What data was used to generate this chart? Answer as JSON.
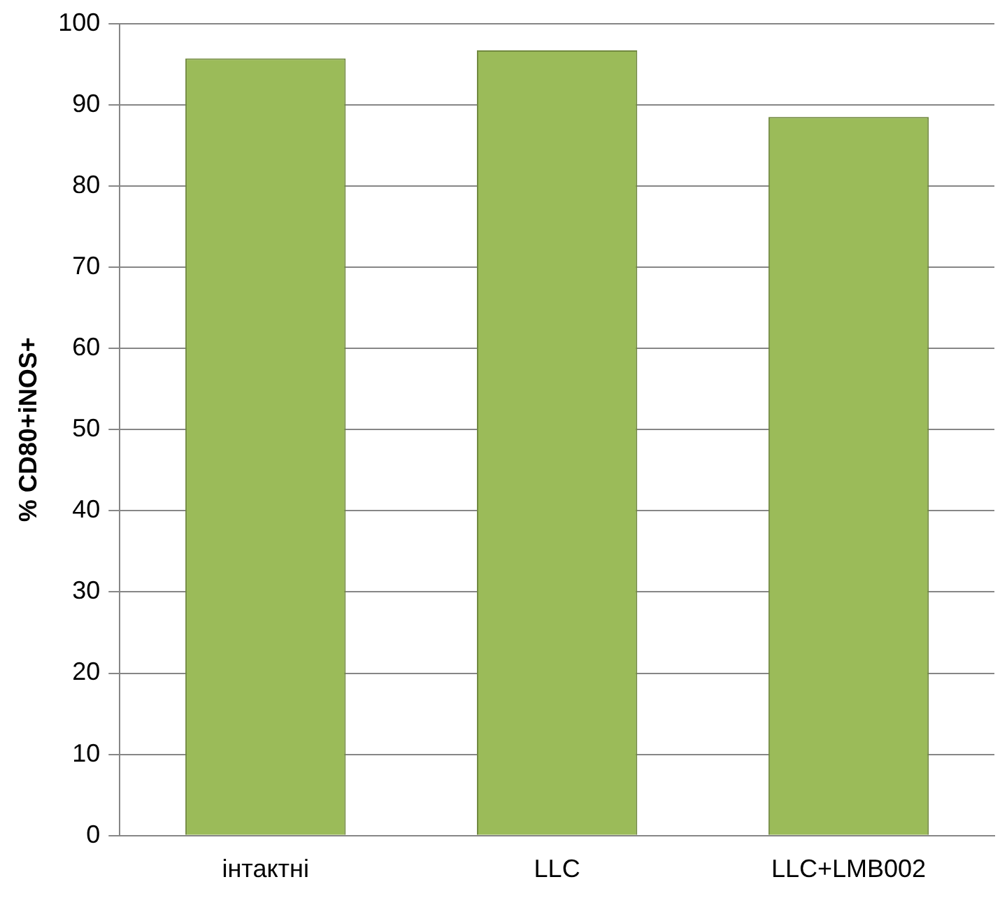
{
  "chart_data": {
    "type": "bar",
    "ylabel": "% CD80+iNOS+",
    "categories": [
      "інтактні",
      "LLC",
      "LLC+LMB002"
    ],
    "values": [
      95.7,
      96.7,
      88.5
    ],
    "color": "#9bbb59",
    "ylim": [
      0,
      100
    ],
    "yticks": [
      0,
      10,
      20,
      30,
      40,
      50,
      60,
      70,
      80,
      90,
      100
    ],
    "grid": "y",
    "legend": false
  }
}
